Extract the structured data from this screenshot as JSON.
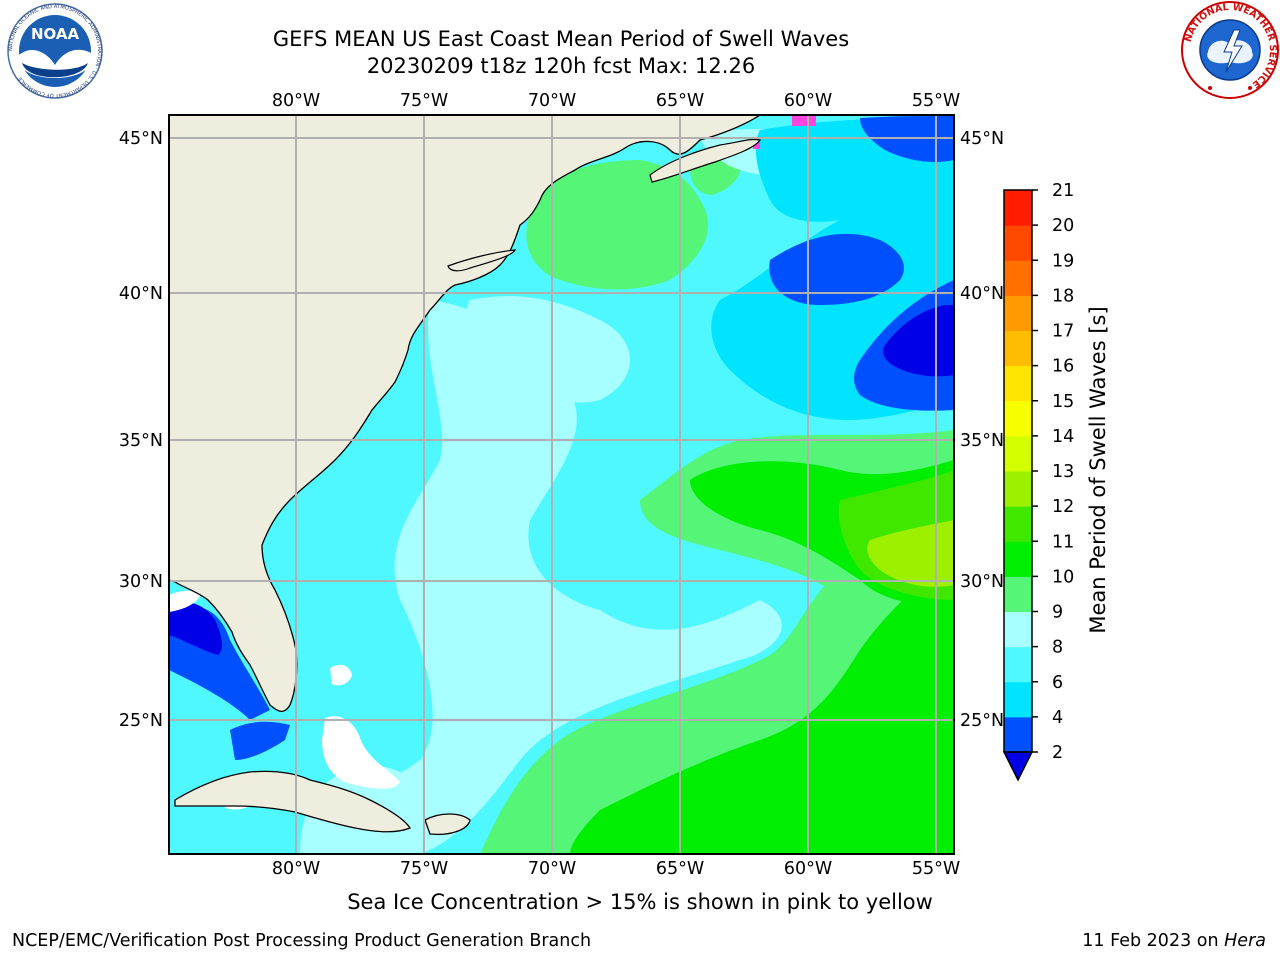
{
  "header": {
    "title_line1": "GEFS MEAN US East Coast Mean Period of Swell Waves",
    "title_line2": "20230209 t18z 120h fcst   Max: 12.26"
  },
  "logos": {
    "left": {
      "name": "noaa-logo",
      "text": "NOAA",
      "ring_text": "NATIONAL OCEANIC AND ATMOSPHERIC ADMINISTRATION · U.S. DEPARTMENT OF COMMERCE"
    },
    "right": {
      "name": "national-weather-service-logo",
      "ring_text": "NATIONAL WEATHER SERVICE"
    }
  },
  "map": {
    "lon_range": [
      -85,
      -54.5
    ],
    "lat_range": [
      20.5,
      46
    ],
    "lon_ticks": [
      "80°W",
      "75°W",
      "70°W",
      "65°W",
      "60°W",
      "55°W"
    ],
    "lat_ticks": [
      "25°N",
      "30°N",
      "35°N",
      "40°N",
      "45°N"
    ],
    "grid": true
  },
  "colorbar": {
    "label": "Mean Period of Swell Waves [s]",
    "ticks": [
      "2",
      "4",
      "6",
      "8",
      "9",
      "10",
      "11",
      "12",
      "13",
      "14",
      "15",
      "16",
      "17",
      "18",
      "19",
      "20",
      "21"
    ],
    "colors": [
      "#0050ff",
      "#00e4ff",
      "#4ff7ff",
      "#a8ffff",
      "#55f578",
      "#00ee00",
      "#40e800",
      "#9cf000",
      "#d4ff00",
      "#f5ff00",
      "#ffe600",
      "#ffbd00",
      "#ff9a00",
      "#ff7000",
      "#ff4800",
      "#ff1c00"
    ],
    "extend_min_color": "#0000e6"
  },
  "footnote": "Sea Ice Concentration > 15% is shown in pink to yellow",
  "footer": {
    "left": "NCEP/EMC/Verification Post Processing Product Generation Branch",
    "right_date": "11 Feb 2023 on ",
    "right_host": "Hera"
  }
}
